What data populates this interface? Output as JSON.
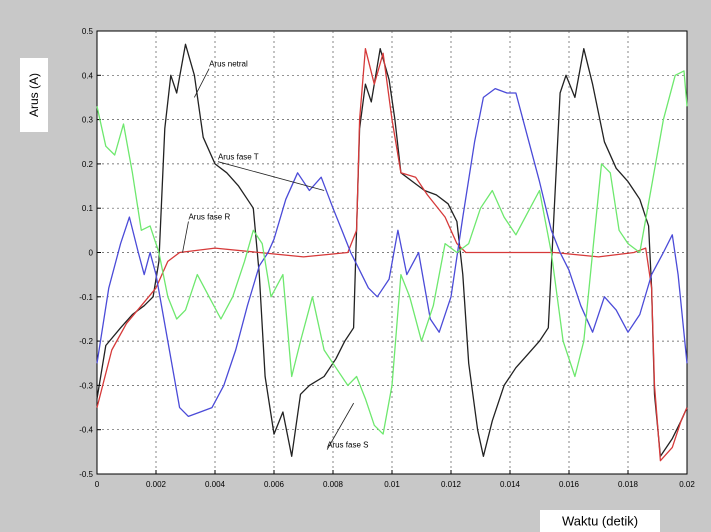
{
  "chart_data": {
    "type": "line",
    "title": "",
    "xlabel": "Waktu (detik)",
    "ylabel": "Arus (A)",
    "xlim": [
      0,
      0.02
    ],
    "ylim": [
      -0.5,
      0.5
    ],
    "grid": true,
    "x_ticks": [
      "0",
      "0.002",
      "0.004",
      "0.006",
      "0.008",
      "0.01",
      "0.012",
      "0.014",
      "0.016",
      "0.018",
      "0.02"
    ],
    "y_ticks": [
      "-0.5",
      "-0.4",
      "-0.3",
      "-0.2",
      "-0.1",
      "0",
      "0.1",
      "0.2",
      "0.3",
      "0.4",
      "0.5"
    ],
    "series": [
      {
        "name": "Arus netral",
        "color": "#222222",
        "points": [
          [
            0,
            -0.33
          ],
          [
            0.0003,
            -0.21
          ],
          [
            0.0008,
            -0.17
          ],
          [
            0.0012,
            -0.14
          ],
          [
            0.0016,
            -0.12
          ],
          [
            0.0019,
            -0.1
          ],
          [
            0.0021,
            -0.02
          ],
          [
            0.0023,
            0.28
          ],
          [
            0.0025,
            0.4
          ],
          [
            0.0027,
            0.36
          ],
          [
            0.003,
            0.47
          ],
          [
            0.0033,
            0.4
          ],
          [
            0.0036,
            0.26
          ],
          [
            0.004,
            0.2
          ],
          [
            0.0044,
            0.18
          ],
          [
            0.0048,
            0.15
          ],
          [
            0.0051,
            0.12
          ],
          [
            0.0053,
            0.1
          ],
          [
            0.0055,
            -0.05
          ],
          [
            0.0057,
            -0.28
          ],
          [
            0.006,
            -0.41
          ],
          [
            0.0063,
            -0.36
          ],
          [
            0.0066,
            -0.46
          ],
          [
            0.0069,
            -0.32
          ],
          [
            0.0072,
            -0.3
          ],
          [
            0.0077,
            -0.28
          ],
          [
            0.0081,
            -0.24
          ],
          [
            0.0084,
            -0.2
          ],
          [
            0.0087,
            -0.17
          ],
          [
            0.0089,
            0.28
          ],
          [
            0.0091,
            0.38
          ],
          [
            0.0093,
            0.34
          ],
          [
            0.0096,
            0.46
          ],
          [
            0.0099,
            0.39
          ],
          [
            0.0101,
            0.3
          ],
          [
            0.0103,
            0.18
          ],
          [
            0.0107,
            0.16
          ],
          [
            0.0111,
            0.14
          ],
          [
            0.0115,
            0.13
          ],
          [
            0.0119,
            0.11
          ],
          [
            0.0122,
            0.07
          ],
          [
            0.0124,
            -0.05
          ],
          [
            0.0126,
            -0.25
          ],
          [
            0.0129,
            -0.4
          ],
          [
            0.0131,
            -0.46
          ],
          [
            0.0134,
            -0.38
          ],
          [
            0.0138,
            -0.3
          ],
          [
            0.0142,
            -0.26
          ],
          [
            0.0146,
            -0.23
          ],
          [
            0.015,
            -0.2
          ],
          [
            0.0153,
            -0.17
          ],
          [
            0.0155,
            0.1
          ],
          [
            0.0157,
            0.36
          ],
          [
            0.0159,
            0.4
          ],
          [
            0.0162,
            0.35
          ],
          [
            0.0165,
            0.46
          ],
          [
            0.0168,
            0.38
          ],
          [
            0.0172,
            0.25
          ],
          [
            0.0176,
            0.19
          ],
          [
            0.018,
            0.16
          ],
          [
            0.0184,
            0.12
          ],
          [
            0.0187,
            0.06
          ],
          [
            0.0188,
            -0.08
          ],
          [
            0.0189,
            -0.32
          ],
          [
            0.0191,
            -0.46
          ],
          [
            0.0195,
            -0.42
          ],
          [
            0.0198,
            -0.38
          ],
          [
            0.02,
            -0.35
          ]
        ]
      },
      {
        "name": "Arus fase R",
        "color": "#d63a3a",
        "points": [
          [
            0,
            -0.35
          ],
          [
            0.0005,
            -0.22
          ],
          [
            0.001,
            -0.16
          ],
          [
            0.0015,
            -0.12
          ],
          [
            0.002,
            -0.08
          ],
          [
            0.0024,
            -0.02
          ],
          [
            0.0028,
            0.0
          ],
          [
            0.004,
            0.01
          ],
          [
            0.0055,
            0.0
          ],
          [
            0.007,
            -0.01
          ],
          [
            0.0085,
            0.0
          ],
          [
            0.0088,
            0.05
          ],
          [
            0.0089,
            0.3
          ],
          [
            0.0091,
            0.46
          ],
          [
            0.0094,
            0.38
          ],
          [
            0.0097,
            0.45
          ],
          [
            0.01,
            0.3
          ],
          [
            0.0103,
            0.18
          ],
          [
            0.0108,
            0.17
          ],
          [
            0.0112,
            0.13
          ],
          [
            0.0118,
            0.08
          ],
          [
            0.0122,
            0.02
          ],
          [
            0.0125,
            0.0
          ],
          [
            0.014,
            0.0
          ],
          [
            0.0155,
            0.0
          ],
          [
            0.017,
            -0.01
          ],
          [
            0.0182,
            0.0
          ],
          [
            0.0186,
            0.01
          ],
          [
            0.0188,
            -0.08
          ],
          [
            0.0189,
            -0.3
          ],
          [
            0.0191,
            -0.47
          ],
          [
            0.0195,
            -0.44
          ],
          [
            0.0198,
            -0.38
          ],
          [
            0.02,
            -0.35
          ]
        ]
      },
      {
        "name": "Arus fase T",
        "color": "#4b4bd8",
        "points": [
          [
            0,
            -0.25
          ],
          [
            0.0004,
            -0.08
          ],
          [
            0.0008,
            0.02
          ],
          [
            0.0011,
            0.08
          ],
          [
            0.0014,
            0.0
          ],
          [
            0.0016,
            -0.05
          ],
          [
            0.0018,
            0.0
          ],
          [
            0.002,
            -0.05
          ],
          [
            0.0024,
            -0.2
          ],
          [
            0.0028,
            -0.35
          ],
          [
            0.0031,
            -0.37
          ],
          [
            0.0035,
            -0.36
          ],
          [
            0.0039,
            -0.35
          ],
          [
            0.0043,
            -0.3
          ],
          [
            0.0047,
            -0.22
          ],
          [
            0.0051,
            -0.12
          ],
          [
            0.0055,
            -0.03
          ],
          [
            0.0058,
            0.0
          ],
          [
            0.006,
            0.03
          ],
          [
            0.0064,
            0.12
          ],
          [
            0.0068,
            0.18
          ],
          [
            0.0072,
            0.14
          ],
          [
            0.0076,
            0.17
          ],
          [
            0.008,
            0.1
          ],
          [
            0.0083,
            0.05
          ],
          [
            0.0086,
            0.0
          ],
          [
            0.0089,
            -0.04
          ],
          [
            0.0092,
            -0.08
          ],
          [
            0.0095,
            -0.1
          ],
          [
            0.0099,
            -0.06
          ],
          [
            0.0102,
            0.05
          ],
          [
            0.0105,
            -0.05
          ],
          [
            0.0109,
            0.0
          ],
          [
            0.0113,
            -0.15
          ],
          [
            0.0116,
            -0.18
          ],
          [
            0.012,
            -0.1
          ],
          [
            0.0124,
            0.08
          ],
          [
            0.0128,
            0.25
          ],
          [
            0.0131,
            0.35
          ],
          [
            0.0135,
            0.37
          ],
          [
            0.0139,
            0.36
          ],
          [
            0.0142,
            0.36
          ],
          [
            0.0146,
            0.26
          ],
          [
            0.015,
            0.16
          ],
          [
            0.0154,
            0.05
          ],
          [
            0.0157,
            0.0
          ],
          [
            0.016,
            -0.04
          ],
          [
            0.0164,
            -0.12
          ],
          [
            0.0168,
            -0.18
          ],
          [
            0.0172,
            -0.1
          ],
          [
            0.0176,
            -0.13
          ],
          [
            0.018,
            -0.18
          ],
          [
            0.0184,
            -0.14
          ],
          [
            0.0188,
            -0.05
          ],
          [
            0.0192,
            0.0
          ],
          [
            0.0195,
            0.04
          ],
          [
            0.0197,
            -0.05
          ],
          [
            0.02,
            -0.25
          ]
        ]
      },
      {
        "name": "Arus fase S",
        "color": "#6ee86e",
        "points": [
          [
            0,
            0.33
          ],
          [
            0.0003,
            0.24
          ],
          [
            0.0006,
            0.22
          ],
          [
            0.0009,
            0.29
          ],
          [
            0.0012,
            0.18
          ],
          [
            0.0015,
            0.05
          ],
          [
            0.0018,
            0.06
          ],
          [
            0.0021,
            0.0
          ],
          [
            0.0024,
            -0.1
          ],
          [
            0.0027,
            -0.15
          ],
          [
            0.003,
            -0.13
          ],
          [
            0.0034,
            -0.05
          ],
          [
            0.0038,
            -0.1
          ],
          [
            0.0042,
            -0.15
          ],
          [
            0.0046,
            -0.1
          ],
          [
            0.005,
            -0.02
          ],
          [
            0.0053,
            0.05
          ],
          [
            0.0056,
            0.02
          ],
          [
            0.0059,
            -0.1
          ],
          [
            0.0063,
            -0.05
          ],
          [
            0.0066,
            -0.28
          ],
          [
            0.0069,
            -0.2
          ],
          [
            0.0073,
            -0.1
          ],
          [
            0.0077,
            -0.22
          ],
          [
            0.0081,
            -0.26
          ],
          [
            0.0085,
            -0.3
          ],
          [
            0.0088,
            -0.28
          ],
          [
            0.0091,
            -0.33
          ],
          [
            0.0094,
            -0.39
          ],
          [
            0.0097,
            -0.41
          ],
          [
            0.01,
            -0.3
          ],
          [
            0.0103,
            -0.05
          ],
          [
            0.0106,
            -0.1
          ],
          [
            0.011,
            -0.2
          ],
          [
            0.0114,
            -0.12
          ],
          [
            0.0118,
            0.02
          ],
          [
            0.0122,
            0.0
          ],
          [
            0.0126,
            0.02
          ],
          [
            0.013,
            0.1
          ],
          [
            0.0134,
            0.14
          ],
          [
            0.0138,
            0.08
          ],
          [
            0.0142,
            0.04
          ],
          [
            0.0146,
            0.09
          ],
          [
            0.015,
            0.14
          ],
          [
            0.0154,
            0.0
          ],
          [
            0.0158,
            -0.2
          ],
          [
            0.0162,
            -0.28
          ],
          [
            0.0165,
            -0.2
          ],
          [
            0.0168,
            0.0
          ],
          [
            0.0171,
            0.2
          ],
          [
            0.0174,
            0.18
          ],
          [
            0.0177,
            0.05
          ],
          [
            0.018,
            0.02
          ],
          [
            0.0184,
            0.0
          ],
          [
            0.0188,
            0.15
          ],
          [
            0.0192,
            0.3
          ],
          [
            0.0196,
            0.4
          ],
          [
            0.0199,
            0.41
          ],
          [
            0.02,
            0.33
          ]
        ]
      }
    ],
    "annotations": [
      {
        "text": "Arus netral",
        "series": "Arus netral",
        "anchor": [
          0.0033,
          0.35
        ],
        "text_at": [
          0.0038,
          0.415
        ]
      },
      {
        "text": "Arus fase T",
        "series": "Arus fase T",
        "anchor": [
          0.0077,
          0.14
        ],
        "text_at": [
          0.0041,
          0.205
        ]
      },
      {
        "text": "Arus fase R",
        "series": "Arus fase R",
        "anchor": [
          0.0029,
          0.0
        ],
        "text_at": [
          0.0031,
          0.07
        ]
      },
      {
        "text": "Arus fase S",
        "series": "Arus fase S",
        "anchor": [
          0.0087,
          -0.34
        ],
        "text_at": [
          0.0078,
          -0.445
        ]
      }
    ]
  }
}
